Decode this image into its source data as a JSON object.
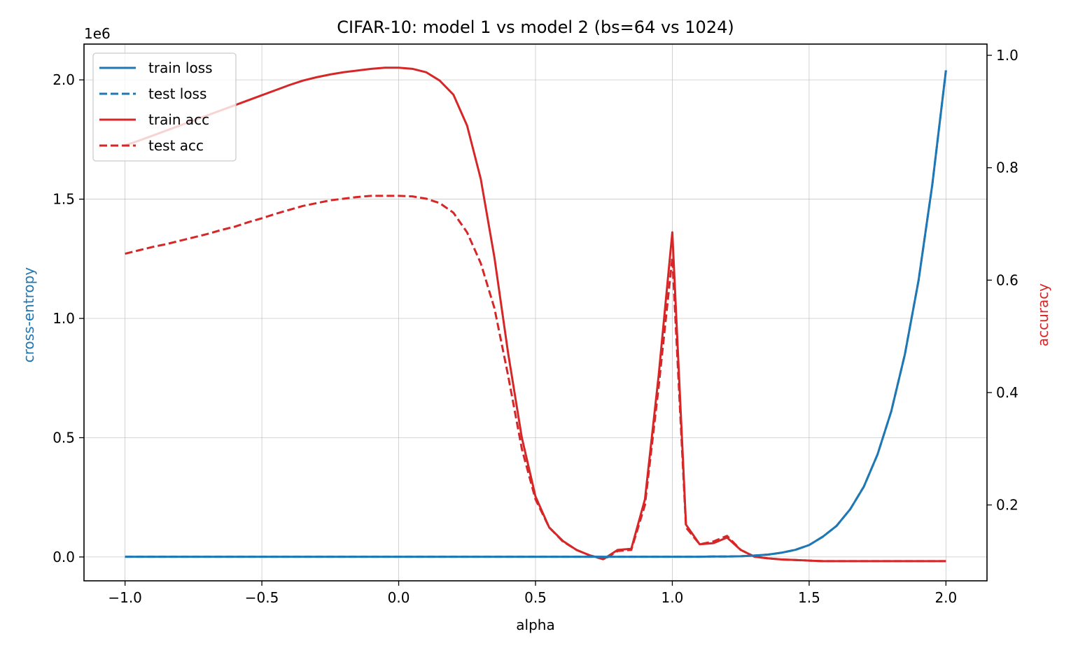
{
  "chart_data": {
    "type": "line",
    "title": "CIFAR-10: model 1 vs model 2 (bs=64 vs 1024)",
    "xlabel": "alpha",
    "ylabel_left": "cross-entropy",
    "ylabel_right": "accuracy",
    "offset_text_left": "1e6",
    "xlim": [
      -1.15,
      2.15
    ],
    "ylim_left": [
      -0.1,
      2.15
    ],
    "ylim_right": [
      0.065,
      1.02
    ],
    "xticks": [
      -1.0,
      -0.5,
      0.0,
      0.5,
      1.0,
      1.5,
      2.0
    ],
    "xtick_labels": [
      "−1.0",
      "−0.5",
      "0.0",
      "0.5",
      "1.0",
      "1.5",
      "2.0"
    ],
    "yticks_left": [
      0.0,
      0.5,
      1.0,
      1.5,
      2.0
    ],
    "ytick_labels_left": [
      "0.0",
      "0.5",
      "1.0",
      "1.5",
      "2.0"
    ],
    "yticks_right": [
      0.2,
      0.4,
      0.6,
      0.8,
      1.0
    ],
    "ytick_labels_right": [
      "0.2",
      "0.4",
      "0.6",
      "0.8",
      "1.0"
    ],
    "grid": true,
    "legend_position": "top-left",
    "colors": {
      "loss": "#1f77b4",
      "acc": "#d62728",
      "grid": "#b0b0b0"
    },
    "alpha": [
      -1.0,
      -0.95,
      -0.9,
      -0.85,
      -0.8,
      -0.75,
      -0.7,
      -0.65,
      -0.6,
      -0.55,
      -0.5,
      -0.45,
      -0.4,
      -0.35,
      -0.3,
      -0.25,
      -0.2,
      -0.15,
      -0.1,
      -0.05,
      0.0,
      0.05,
      0.1,
      0.15,
      0.2,
      0.25,
      0.3,
      0.35,
      0.4,
      0.45,
      0.5,
      0.55,
      0.6,
      0.65,
      0.7,
      0.75,
      0.8,
      0.85,
      0.9,
      0.95,
      1.0,
      1.05,
      1.1,
      1.15,
      1.2,
      1.25,
      1.3,
      1.35,
      1.4,
      1.45,
      1.5,
      1.55,
      1.6,
      1.65,
      1.7,
      1.75,
      1.8,
      1.85,
      1.9,
      1.95,
      2.0
    ],
    "series": [
      {
        "name": "train loss",
        "axis": "left",
        "style": "solid",
        "color": "#1f77b4",
        "values": [
          0.001,
          0.001,
          0.001,
          0.001,
          0.001,
          0.001,
          0.001,
          0.001,
          0.001,
          0.001,
          0.001,
          0.001,
          0.001,
          0.001,
          0.001,
          0.001,
          0.001,
          0.001,
          0.001,
          0.001,
          0.001,
          0.001,
          0.001,
          0.001,
          0.001,
          0.001,
          0.001,
          0.001,
          0.001,
          0.001,
          0.001,
          0.001,
          0.001,
          0.001,
          0.001,
          0.001,
          0.001,
          0.001,
          0.001,
          0.001,
          0.001,
          0.001,
          0.001,
          0.002,
          0.002,
          0.003,
          0.006,
          0.01,
          0.018,
          0.03,
          0.05,
          0.085,
          0.13,
          0.2,
          0.295,
          0.43,
          0.61,
          0.85,
          1.16,
          1.56,
          2.04
        ]
      },
      {
        "name": "test loss",
        "axis": "left",
        "style": "dashed",
        "color": "#1f77b4",
        "values": [
          0.001,
          0.001,
          0.001,
          0.001,
          0.001,
          0.001,
          0.001,
          0.001,
          0.001,
          0.001,
          0.001,
          0.001,
          0.001,
          0.001,
          0.001,
          0.001,
          0.001,
          0.001,
          0.001,
          0.001,
          0.001,
          0.001,
          0.001,
          0.001,
          0.001,
          0.001,
          0.001,
          0.001,
          0.001,
          0.001,
          0.001,
          0.001,
          0.001,
          0.001,
          0.001,
          0.001,
          0.001,
          0.001,
          0.001,
          0.001,
          0.001,
          0.001,
          0.001,
          0.002,
          0.002,
          0.003,
          0.006,
          0.01,
          0.018,
          0.03,
          0.05,
          0.085,
          0.13,
          0.2,
          0.295,
          0.43,
          0.61,
          0.85,
          1.16,
          1.56,
          2.04
        ]
      },
      {
        "name": "train acc",
        "axis": "right",
        "style": "solid",
        "color": "#d62728",
        "values": [
          0.84,
          0.848,
          0.857,
          0.866,
          0.875,
          0.884,
          0.893,
          0.902,
          0.911,
          0.92,
          0.929,
          0.938,
          0.947,
          0.955,
          0.961,
          0.966,
          0.97,
          0.973,
          0.976,
          0.978,
          0.978,
          0.976,
          0.97,
          0.955,
          0.93,
          0.875,
          0.78,
          0.64,
          0.47,
          0.32,
          0.215,
          0.16,
          0.136,
          0.12,
          0.11,
          0.104,
          0.12,
          0.122,
          0.21,
          0.43,
          0.685,
          0.165,
          0.13,
          0.132,
          0.142,
          0.12,
          0.108,
          0.105,
          0.103,
          0.102,
          0.101,
          0.1,
          0.1,
          0.1,
          0.1,
          0.1,
          0.1,
          0.1,
          0.1,
          0.1,
          0.1
        ]
      },
      {
        "name": "test acc",
        "axis": "right",
        "style": "dashed",
        "color": "#d62728",
        "values": [
          0.647,
          0.653,
          0.659,
          0.664,
          0.67,
          0.676,
          0.682,
          0.689,
          0.695,
          0.703,
          0.71,
          0.718,
          0.725,
          0.732,
          0.737,
          0.742,
          0.745,
          0.748,
          0.75,
          0.75,
          0.75,
          0.749,
          0.745,
          0.737,
          0.72,
          0.685,
          0.63,
          0.55,
          0.43,
          0.3,
          0.21,
          0.16,
          0.135,
          0.12,
          0.11,
          0.103,
          0.118,
          0.12,
          0.2,
          0.41,
          0.64,
          0.16,
          0.13,
          0.135,
          0.145,
          0.12,
          0.108,
          0.105,
          0.103,
          0.102,
          0.101,
          0.1,
          0.1,
          0.1,
          0.1,
          0.1,
          0.1,
          0.1,
          0.1,
          0.1,
          0.1
        ]
      }
    ]
  }
}
